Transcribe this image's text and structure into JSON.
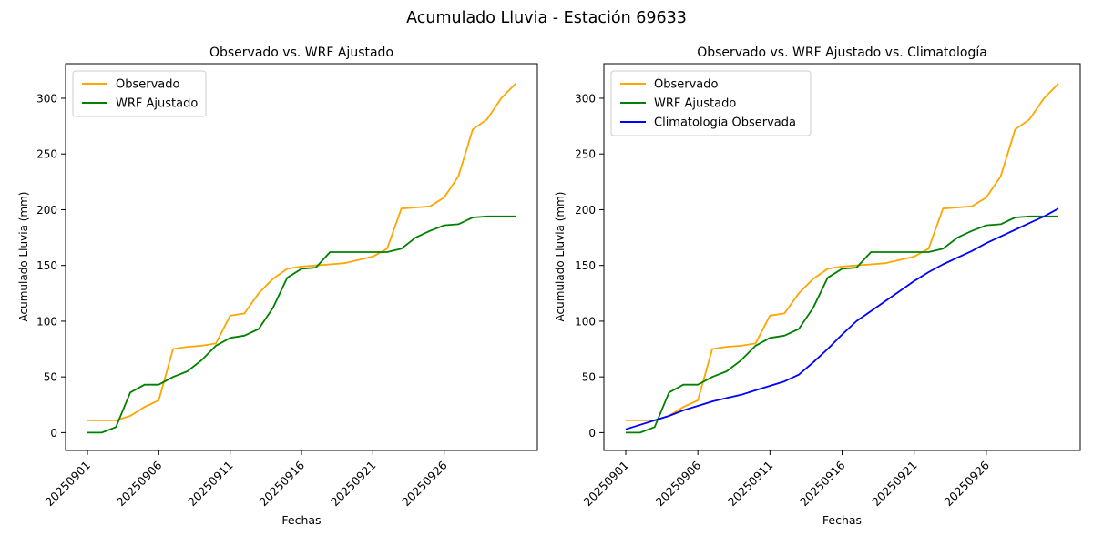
{
  "figure": {
    "title": "Acumulado Lluvia - Estación 69633",
    "background": "#ffffff",
    "text_color": "#000000",
    "spine_color": "#000000"
  },
  "chart_data": [
    {
      "type": "line",
      "title": "Observado vs. WRF Ajustado",
      "xlabel": "Fechas",
      "ylabel": "Acumulado Lluvia (mm)",
      "x": [
        "20250901",
        "20250902",
        "20250903",
        "20250904",
        "20250905",
        "20250906",
        "20250907",
        "20250908",
        "20250909",
        "20250910",
        "20250911",
        "20250912",
        "20250913",
        "20250914",
        "20250915",
        "20250916",
        "20250917",
        "20250918",
        "20250919",
        "20250920",
        "20250921",
        "20250922",
        "20250923",
        "20250924",
        "20250925",
        "20250926",
        "20250927",
        "20250928",
        "20250929",
        "20250930",
        "20251001"
      ],
      "xtick_labels": [
        "20250901",
        "20250906",
        "20250911",
        "20250916",
        "20250921",
        "20250926"
      ],
      "xtick_positions": [
        0,
        5,
        10,
        15,
        20,
        25
      ],
      "xtick_rotation": 45,
      "yticks": [
        0,
        50,
        100,
        150,
        200,
        250,
        300
      ],
      "ylim": [
        -16,
        331
      ],
      "grid": false,
      "legend_position": "upper-left",
      "series": [
        {
          "name": "Observado",
          "color": "#FFA500",
          "values": [
            11,
            11,
            11,
            15,
            23,
            29,
            75,
            77,
            78,
            80,
            105,
            107,
            125,
            138,
            147,
            149,
            150,
            151,
            152,
            155,
            158,
            165,
            201,
            202,
            203,
            211,
            230,
            272,
            281,
            300,
            313
          ]
        },
        {
          "name": "WRF Ajustado",
          "color": "#008000",
          "values": [
            0,
            0,
            5,
            36,
            43,
            43,
            50,
            55,
            65,
            78,
            85,
            87,
            93,
            112,
            139,
            147,
            148,
            162,
            162,
            162,
            162,
            162,
            165,
            175,
            181,
            186,
            187,
            193,
            194,
            194,
            194
          ]
        }
      ]
    },
    {
      "type": "line",
      "title": "Observado vs. WRF Ajustado vs. Climatología",
      "xlabel": "Fechas",
      "ylabel": "Acumulado Lluvia (mm)",
      "x": [
        "20250901",
        "20250902",
        "20250903",
        "20250904",
        "20250905",
        "20250906",
        "20250907",
        "20250908",
        "20250909",
        "20250910",
        "20250911",
        "20250912",
        "20250913",
        "20250914",
        "20250915",
        "20250916",
        "20250917",
        "20250918",
        "20250919",
        "20250920",
        "20250921",
        "20250922",
        "20250923",
        "20250924",
        "20250925",
        "20250926",
        "20250927",
        "20250928",
        "20250929",
        "20250930",
        "20251001"
      ],
      "xtick_labels": [
        "20250901",
        "20250906",
        "20250911",
        "20250916",
        "20250921",
        "20250926"
      ],
      "xtick_positions": [
        0,
        5,
        10,
        15,
        20,
        25
      ],
      "xtick_rotation": 45,
      "yticks": [
        0,
        50,
        100,
        150,
        200,
        250,
        300
      ],
      "ylim": [
        -16,
        331
      ],
      "grid": false,
      "legend_position": "upper-left",
      "series": [
        {
          "name": "Observado",
          "color": "#FFA500",
          "values": [
            11,
            11,
            11,
            15,
            23,
            29,
            75,
            77,
            78,
            80,
            105,
            107,
            125,
            138,
            147,
            149,
            150,
            151,
            152,
            155,
            158,
            165,
            201,
            202,
            203,
            211,
            230,
            272,
            281,
            300,
            313
          ]
        },
        {
          "name": "WRF Ajustado",
          "color": "#008000",
          "values": [
            0,
            0,
            5,
            36,
            43,
            43,
            50,
            55,
            65,
            78,
            85,
            87,
            93,
            112,
            139,
            147,
            148,
            162,
            162,
            162,
            162,
            162,
            165,
            175,
            181,
            186,
            187,
            193,
            194,
            194,
            194
          ]
        },
        {
          "name": "Climatología Observada",
          "color": "#0000FF",
          "values": [
            3,
            7,
            11,
            15,
            20,
            24,
            28,
            31,
            34,
            38,
            42,
            46,
            52,
            63,
            75,
            88,
            100,
            109,
            118,
            127,
            136,
            144,
            151,
            157,
            163,
            170,
            176,
            182,
            188,
            194,
            201
          ]
        }
      ]
    }
  ]
}
